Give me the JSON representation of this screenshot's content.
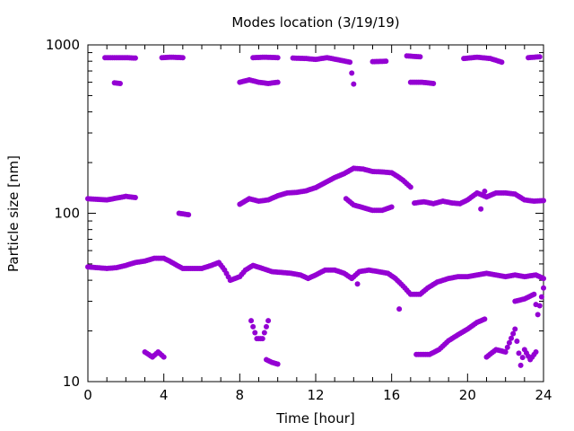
{
  "chart_data": {
    "type": "scatter",
    "title": "Modes location (3/19/19)",
    "xlabel": "Time [hour]",
    "ylabel": "Particle size [nm]",
    "xlim": [
      0,
      24
    ],
    "ylim": [
      10,
      1000
    ],
    "yscale": "log",
    "grid": false,
    "marker_color": "#9400d3",
    "x_ticks": [
      "0",
      "4",
      "8",
      "12",
      "16",
      "20",
      "24"
    ],
    "y_ticks": [
      "10",
      "100",
      "1000"
    ],
    "series": [
      {
        "points": [
          [
            0.0,
            48
          ],
          [
            0.5,
            47.5
          ],
          [
            1.0,
            47
          ],
          [
            1.5,
            47.5
          ],
          [
            2.0,
            49
          ],
          [
            2.5,
            51
          ],
          [
            3.0,
            52
          ],
          [
            3.5,
            54
          ],
          [
            4.0,
            54
          ],
          [
            4.3,
            52
          ],
          [
            4.7,
            49
          ],
          [
            5.0,
            47
          ],
          [
            5.5,
            47
          ],
          [
            6.0,
            47
          ],
          [
            6.5,
            49
          ],
          [
            6.9,
            51
          ],
          [
            7.2,
            46
          ],
          [
            7.5,
            40
          ],
          [
            8.0,
            42
          ],
          [
            8.3,
            46
          ],
          [
            8.7,
            49
          ],
          [
            9.2,
            47
          ],
          [
            9.7,
            45
          ],
          [
            10.2,
            44.5
          ],
          [
            10.7,
            44
          ],
          [
            11.2,
            43
          ],
          [
            11.6,
            41
          ],
          [
            12.0,
            43
          ],
          [
            12.5,
            46
          ],
          [
            13.0,
            46
          ],
          [
            13.5,
            44
          ],
          [
            13.9,
            41
          ],
          [
            14.3,
            45
          ],
          [
            14.8,
            46
          ],
          [
            15.3,
            45
          ],
          [
            15.8,
            44
          ],
          [
            16.2,
            41
          ],
          [
            16.6,
            37
          ],
          [
            17.0,
            33
          ],
          [
            17.5,
            33
          ],
          [
            17.9,
            36
          ],
          [
            18.4,
            39
          ],
          [
            19.0,
            41
          ],
          [
            19.5,
            42
          ],
          [
            20.0,
            42
          ],
          [
            20.5,
            43
          ],
          [
            21.0,
            44
          ],
          [
            21.5,
            43
          ],
          [
            22.0,
            42
          ],
          [
            22.5,
            43
          ],
          [
            23.0,
            42
          ],
          [
            23.6,
            43
          ],
          [
            24.0,
            41
          ],
          [
            14.2,
            38
          ],
          [
            16.4,
            27
          ]
        ]
      },
      {
        "points": [
          [
            0.0,
            122
          ],
          [
            0.5,
            121
          ],
          [
            1.0,
            120
          ],
          [
            1.5,
            123
          ],
          [
            2.0,
            126
          ],
          [
            2.5,
            124
          ],
          [
            4.8,
            100
          ],
          [
            5.3,
            98
          ],
          [
            8.0,
            113
          ],
          [
            8.5,
            122
          ],
          [
            9.0,
            118
          ],
          [
            9.5,
            120
          ],
          [
            10.0,
            127
          ],
          [
            10.5,
            132
          ],
          [
            11.0,
            133
          ],
          [
            11.5,
            136
          ],
          [
            12.0,
            142
          ],
          [
            12.5,
            152
          ],
          [
            13.0,
            163
          ],
          [
            13.5,
            172
          ],
          [
            14.0,
            185
          ],
          [
            14.5,
            183
          ],
          [
            15.0,
            177
          ],
          [
            15.5,
            176
          ],
          [
            16.0,
            174
          ],
          [
            16.3,
            166
          ],
          [
            16.6,
            157
          ],
          [
            17.0,
            143
          ],
          [
            13.6,
            122
          ],
          [
            14.0,
            112
          ],
          [
            14.5,
            108
          ],
          [
            15.0,
            104
          ],
          [
            15.5,
            104
          ],
          [
            16.0,
            109
          ],
          [
            17.2,
            115
          ],
          [
            17.7,
            117
          ],
          [
            18.2,
            114
          ],
          [
            18.7,
            118
          ],
          [
            19.2,
            115
          ],
          [
            19.6,
            114
          ],
          [
            20.0,
            120
          ],
          [
            20.5,
            132
          ],
          [
            21.0,
            125
          ],
          [
            21.5,
            132
          ],
          [
            22.0,
            132
          ],
          [
            22.5,
            130
          ],
          [
            23.0,
            120
          ],
          [
            23.5,
            118
          ],
          [
            24.0,
            119
          ],
          [
            20.9,
            135
          ],
          [
            20.7,
            106
          ]
        ]
      },
      {
        "points": [
          [
            0.9,
            840
          ],
          [
            1.4,
            840
          ],
          [
            2.0,
            840
          ],
          [
            2.5,
            835
          ],
          [
            1.4,
            595
          ],
          [
            1.7,
            590
          ],
          [
            3.9,
            840
          ],
          [
            4.4,
            845
          ],
          [
            5.0,
            840
          ],
          [
            8.0,
            600
          ],
          [
            8.5,
            620
          ],
          [
            9.0,
            600
          ],
          [
            9.5,
            590
          ],
          [
            10.0,
            600
          ],
          [
            8.7,
            840
          ],
          [
            9.3,
            845
          ],
          [
            10.0,
            840
          ],
          [
            10.8,
            835
          ],
          [
            11.5,
            830
          ],
          [
            12.0,
            820
          ],
          [
            12.6,
            840
          ],
          [
            13.2,
            815
          ],
          [
            13.8,
            790
          ],
          [
            14.0,
            585
          ],
          [
            15.0,
            795
          ],
          [
            15.7,
            800
          ],
          [
            16.8,
            860
          ],
          [
            17.5,
            850
          ],
          [
            17.0,
            600
          ],
          [
            17.6,
            600
          ],
          [
            18.2,
            590
          ],
          [
            19.8,
            830
          ],
          [
            20.5,
            845
          ],
          [
            21.2,
            830
          ],
          [
            21.8,
            790
          ],
          [
            23.2,
            840
          ],
          [
            23.8,
            850
          ]
        ]
      },
      {
        "points": [
          [
            3.0,
            15
          ],
          [
            3.4,
            14
          ],
          [
            3.7,
            15
          ],
          [
            4.0,
            14
          ],
          [
            8.6,
            23
          ],
          [
            8.9,
            18
          ],
          [
            9.2,
            18
          ],
          [
            9.5,
            23
          ],
          [
            9.4,
            13.5
          ],
          [
            9.7,
            13
          ],
          [
            10.0,
            12.7
          ],
          [
            17.3,
            14.5
          ],
          [
            18.0,
            14.5
          ],
          [
            18.5,
            15.5
          ],
          [
            19.0,
            17.5
          ],
          [
            19.5,
            19
          ],
          [
            20.0,
            20.5
          ],
          [
            20.5,
            22.5
          ],
          [
            20.9,
            23.5
          ],
          [
            21.0,
            14
          ],
          [
            21.5,
            15.5
          ],
          [
            22.0,
            15
          ],
          [
            22.5,
            20.5
          ],
          [
            22.8,
            12.5
          ],
          [
            23.0,
            15.5
          ],
          [
            23.3,
            13.5
          ],
          [
            23.6,
            15
          ],
          [
            22.5,
            30
          ],
          [
            23.0,
            31
          ],
          [
            23.5,
            33
          ],
          [
            23.7,
            25
          ],
          [
            24.0,
            36
          ]
        ]
      }
    ]
  }
}
